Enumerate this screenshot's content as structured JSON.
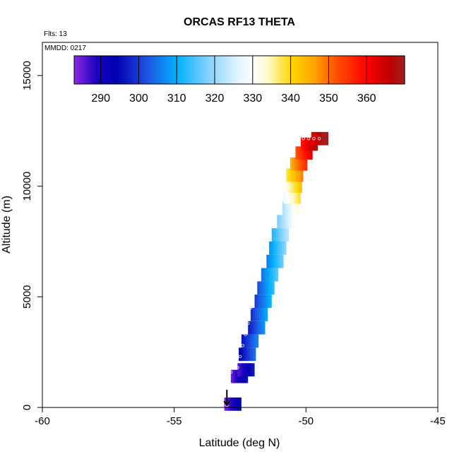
{
  "chart_data": {
    "type": "heatmap",
    "title": "ORCAS RF13 THETA",
    "flights_label": "Flts: 13",
    "date_label": "MMDD: 0217",
    "xlabel": "Latitude (deg N)",
    "ylabel": "Altitude (m)",
    "xlim": [
      -60,
      -45
    ],
    "ylim": [
      0,
      16500
    ],
    "x_ticks": [
      -60,
      -55,
      -50,
      -45
    ],
    "x_tick_labels": [
      "-60",
      "-55",
      "-50",
      "-45"
    ],
    "y_ticks": [
      0,
      5000,
      10000,
      15000
    ],
    "y_tick_labels": [
      "0",
      "5000",
      "10000",
      "15000"
    ],
    "colorbar": {
      "min": 283,
      "max": 370,
      "ticks": [
        290,
        300,
        310,
        320,
        330,
        340,
        350,
        360
      ],
      "tick_labels": [
        "290",
        "300",
        "310",
        "320",
        "330",
        "340",
        "350",
        "360"
      ],
      "stops": [
        {
          "v": 283,
          "c": "#8a2be2"
        },
        {
          "v": 289,
          "c": "#1a00c0"
        },
        {
          "v": 294,
          "c": "#0000b0"
        },
        {
          "v": 302,
          "c": "#2050e0"
        },
        {
          "v": 310,
          "c": "#00b0ff"
        },
        {
          "v": 318,
          "c": "#80d0ff"
        },
        {
          "v": 326,
          "c": "#e0f4ff"
        },
        {
          "v": 330,
          "c": "#ffffff"
        },
        {
          "v": 334,
          "c": "#fffacd"
        },
        {
          "v": 340,
          "c": "#ffd700"
        },
        {
          "v": 346,
          "c": "#ffa500"
        },
        {
          "v": 352,
          "c": "#ff5000"
        },
        {
          "v": 360,
          "c": "#ff0000"
        },
        {
          "v": 366,
          "c": "#c00000"
        },
        {
          "v": 370,
          "c": "#a02020"
        }
      ]
    },
    "cells": [
      {
        "lat": -53.1,
        "alt": 150,
        "theta": 284
      },
      {
        "lat": -52.85,
        "alt": 1400,
        "theta": 285
      },
      {
        "lat": -52.6,
        "alt": 1700,
        "theta": 286
      },
      {
        "lat": -52.55,
        "alt": 2400,
        "theta": 294
      },
      {
        "lat": -52.45,
        "alt": 3000,
        "theta": 296
      },
      {
        "lat": -52.2,
        "alt": 3600,
        "theta": 297
      },
      {
        "lat": -52.1,
        "alt": 4200,
        "theta": 299
      },
      {
        "lat": -51.95,
        "alt": 4800,
        "theta": 300
      },
      {
        "lat": -51.85,
        "alt": 5400,
        "theta": 302
      },
      {
        "lat": -51.7,
        "alt": 6000,
        "theta": 305
      },
      {
        "lat": -51.5,
        "alt": 6600,
        "theta": 306
      },
      {
        "lat": -51.4,
        "alt": 7200,
        "theta": 308
      },
      {
        "lat": -51.3,
        "alt": 7800,
        "theta": 312
      },
      {
        "lat": -51.1,
        "alt": 8400,
        "theta": 318
      },
      {
        "lat": -50.9,
        "alt": 9000,
        "theta": 322
      },
      {
        "lat": -50.85,
        "alt": 9500,
        "theta": 328
      },
      {
        "lat": -50.8,
        "alt": 10000,
        "theta": 332
      },
      {
        "lat": -50.75,
        "alt": 10500,
        "theta": 338
      },
      {
        "lat": -50.6,
        "alt": 11000,
        "theta": 345
      },
      {
        "lat": -50.4,
        "alt": 11500,
        "theta": 352
      },
      {
        "lat": -50.2,
        "alt": 11900,
        "theta": 358
      },
      {
        "lat": -49.8,
        "alt": 12150,
        "theta": 362
      }
    ],
    "track": [
      [
        -53.0,
        100
      ],
      [
        -52.95,
        600
      ],
      [
        -52.9,
        1100
      ],
      [
        -52.85,
        1600
      ],
      [
        -52.6,
        1800
      ],
      [
        -52.5,
        2300
      ],
      [
        -52.4,
        2800
      ],
      [
        -52.3,
        3300
      ],
      [
        -52.2,
        3800
      ],
      [
        -52.1,
        4500
      ],
      [
        -51.95,
        5200
      ],
      [
        -51.85,
        5800
      ],
      [
        -51.7,
        6500
      ],
      [
        -51.55,
        7100
      ],
      [
        -51.45,
        7700
      ],
      [
        -51.4,
        8300
      ],
      [
        -51.25,
        8900
      ],
      [
        -51.0,
        9400
      ],
      [
        -50.9,
        10000
      ],
      [
        -50.8,
        10600
      ],
      [
        -50.75,
        11200
      ],
      [
        -50.7,
        11700
      ],
      [
        -50.65,
        12100
      ],
      [
        -50.5,
        12150
      ],
      [
        -50.3,
        12150
      ],
      [
        -50.1,
        12150
      ],
      [
        -49.9,
        12150
      ],
      [
        -49.7,
        12150
      ],
      [
        -49.5,
        12150
      ]
    ]
  }
}
